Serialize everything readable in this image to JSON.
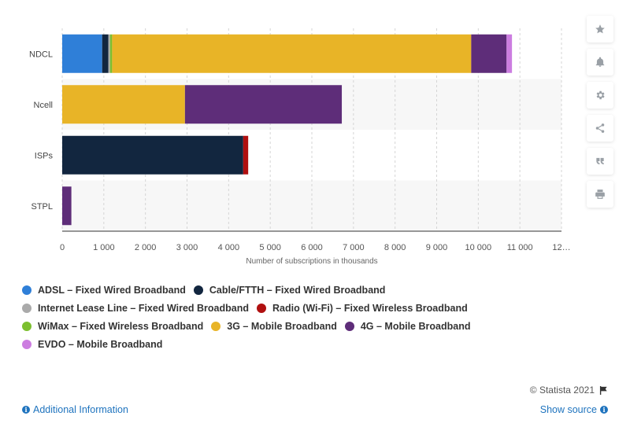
{
  "chart_data": {
    "type": "bar",
    "orientation": "horizontal",
    "stacked": true,
    "categories": [
      "NDCL",
      "Ncell",
      "ISPs",
      "STPL"
    ],
    "series": [
      {
        "name": "ADSL – Fixed Wired Broadband",
        "color": "#2f7fd8",
        "values": [
          960,
          0,
          0,
          0
        ]
      },
      {
        "name": "Cable/FTTH – Fixed Wired Broadband",
        "color": "#12263f",
        "values": [
          150,
          0,
          4350,
          0
        ]
      },
      {
        "name": "Internet Lease Line – Fixed Wired Broadband",
        "color": "#aaaaaa",
        "values": [
          40,
          0,
          0,
          0
        ]
      },
      {
        "name": "Radio (Wi-Fi) – Fixed Wireless Broadband",
        "color": "#b01010",
        "values": [
          0,
          0,
          120,
          0
        ]
      },
      {
        "name": "WiMax – Fixed Wireless Broadband",
        "color": "#7cbf2f",
        "values": [
          50,
          0,
          0,
          0
        ]
      },
      {
        "name": "3G – Mobile Broadband",
        "color": "#e8b427",
        "values": [
          8630,
          2950,
          0,
          0
        ]
      },
      {
        "name": "4G – Mobile Broadband",
        "color": "#5e2d79",
        "values": [
          850,
          3770,
          0,
          220
        ]
      },
      {
        "name": "EVDO – Mobile Broadband",
        "color": "#cc7de0",
        "values": [
          130,
          0,
          0,
          0
        ]
      }
    ],
    "xticks": [
      "0",
      "1 000",
      "2 000",
      "3 000",
      "4 000",
      "5 000",
      "6 000",
      "7 000",
      "8 000",
      "9 000",
      "10 000",
      "11 000",
      "12…"
    ],
    "xlim": [
      0,
      12000
    ],
    "xlabel": "Number of subscriptions in thousands",
    "grid": true,
    "legend_position": "bottom"
  },
  "footer": {
    "credit": "© Statista 2021",
    "additional_info": "Additional Information",
    "show_source": "Show source"
  },
  "sidebar": {
    "buttons": [
      "star-icon",
      "bell-icon",
      "gear-icon",
      "share-icon",
      "quote-icon",
      "print-icon"
    ]
  }
}
